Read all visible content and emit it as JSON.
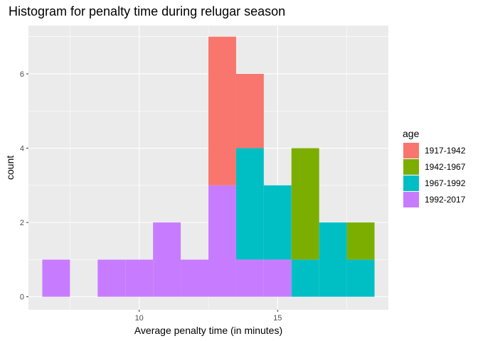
{
  "chart_data": {
    "type": "bar",
    "title": "Histogram for penalty time during relugar season",
    "xlabel": "Average penalty time (in minutes)",
    "ylabel": "count",
    "xlim": [
      6,
      19
    ],
    "ylim": [
      -0.35,
      7.3
    ],
    "x_ticks": [
      10,
      15
    ],
    "y_ticks": [
      0,
      2,
      4,
      6
    ],
    "bin_width": 1,
    "bin_centers": [
      7,
      9,
      10,
      11,
      12,
      13,
      14,
      15,
      16,
      17,
      18
    ],
    "stacked": true,
    "grid": true,
    "legend_position": "right",
    "legend_title": "age",
    "series": [
      {
        "name": "1917-1942",
        "color": "#F8766D",
        "values": [
          0,
          0,
          0,
          0,
          0,
          4,
          2,
          0,
          0,
          0,
          0
        ]
      },
      {
        "name": "1942-1967",
        "color": "#7CAE00",
        "values": [
          0,
          0,
          0,
          0,
          0,
          0,
          0,
          0,
          3,
          0,
          1
        ]
      },
      {
        "name": "1967-1992",
        "color": "#00BFC4",
        "values": [
          0,
          0,
          0,
          0,
          0,
          0,
          3,
          2,
          1,
          2,
          1
        ]
      },
      {
        "name": "1992-2017",
        "color": "#C77CFF",
        "values": [
          1,
          1,
          1,
          2,
          1,
          3,
          1,
          1,
          0,
          0,
          0
        ]
      }
    ]
  }
}
